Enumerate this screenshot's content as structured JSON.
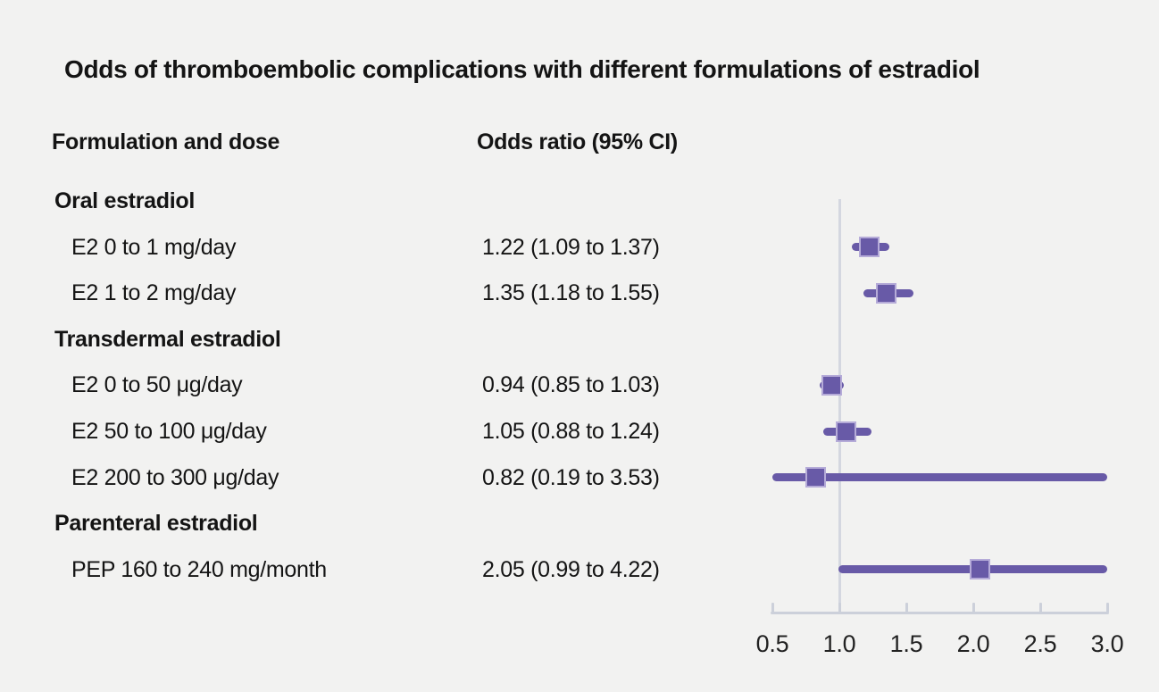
{
  "title": "Odds of thromboembolic complications with different formulations of estradiol",
  "table": {
    "col_formulation": "Formulation and dose",
    "col_odds": "Odds ratio (95% CI)"
  },
  "colors": {
    "background": "#f2f2f1",
    "text": "#141414",
    "marker": "#685aa7",
    "marker_border": "#b5abd8",
    "reference_line": "#d4d7e0",
    "axis": "#ccd0da"
  },
  "chart_data": {
    "type": "forest",
    "title": "Odds of thromboembolic complications with different formulations of estradiol",
    "xlabel": "Odds ratio",
    "x_axis": {
      "min": 0.5,
      "max": 3.0,
      "reference_line": 1.0,
      "ticks": [
        {
          "value": 0.5,
          "label": "0.5"
        },
        {
          "value": 1.0,
          "label": "1.0"
        },
        {
          "value": 1.5,
          "label": "1.5"
        },
        {
          "value": 2.0,
          "label": "2.0"
        },
        {
          "value": 2.5,
          "label": "2.5"
        },
        {
          "value": 3.0,
          "label": "3.0"
        }
      ]
    },
    "groups": [
      {
        "header": "Oral estradiol",
        "items": [
          {
            "label": "E2 0 to 1 mg/day",
            "display": "1.22 (1.09 to 1.37)",
            "or": 1.22,
            "ci_low": 1.09,
            "ci_high": 1.37
          },
          {
            "label": "E2 1 to 2 mg/day",
            "display": "1.35 (1.18 to 1.55)",
            "or": 1.35,
            "ci_low": 1.18,
            "ci_high": 1.55
          }
        ]
      },
      {
        "header": "Transdermal estradiol",
        "items": [
          {
            "label": "E2 0 to 50 μg/day",
            "display": "0.94 (0.85 to 1.03)",
            "or": 0.94,
            "ci_low": 0.85,
            "ci_high": 1.03
          },
          {
            "label": "E2 50 to 100 μg/day",
            "display": "1.05 (0.88 to 1.24)",
            "or": 1.05,
            "ci_low": 0.88,
            "ci_high": 1.24
          },
          {
            "label": "E2 200 to 300 μg/day",
            "display": "0.82 (0.19 to 3.53)",
            "or": 0.82,
            "ci_low": 0.19,
            "ci_high": 3.53
          }
        ]
      },
      {
        "header": "Parenteral estradiol",
        "items": [
          {
            "label": "PEP 160 to 240 mg/month",
            "display": "2.05 (0.99 to 4.22)",
            "or": 2.05,
            "ci_low": 0.99,
            "ci_high": 4.22
          }
        ]
      }
    ]
  }
}
